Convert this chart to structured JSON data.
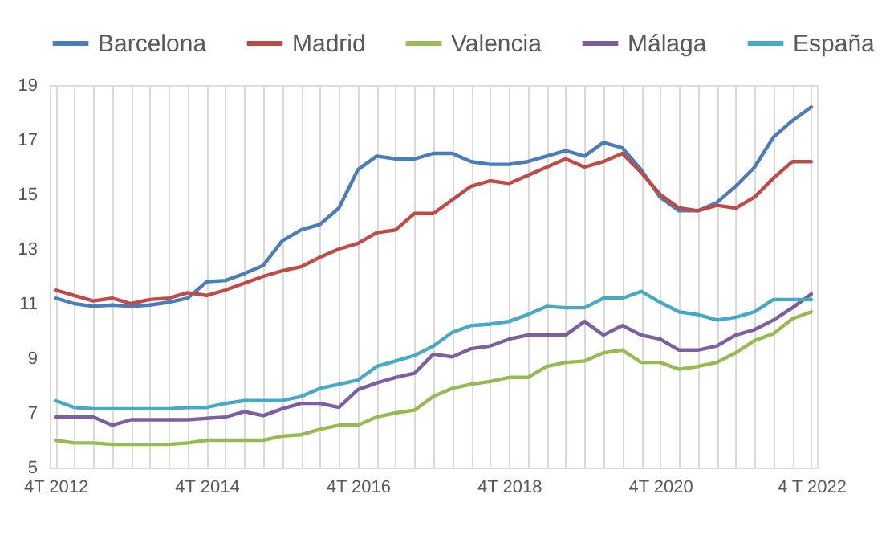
{
  "chart_data": {
    "type": "line",
    "categories": [
      "4T 2012",
      null,
      null,
      null,
      null,
      null,
      null,
      null,
      "4T 2014",
      null,
      null,
      null,
      null,
      null,
      null,
      null,
      "4T 2016",
      null,
      null,
      null,
      null,
      null,
      null,
      null,
      "4T 2018",
      null,
      null,
      null,
      null,
      null,
      null,
      null,
      "4T 2020",
      null,
      null,
      null,
      null,
      null,
      null,
      null,
      "4 T 2022"
    ],
    "series": [
      {
        "name": "Barcelona",
        "color": "#4a7ebb",
        "values": [
          11.2,
          11.0,
          10.9,
          10.95,
          10.9,
          10.95,
          11.05,
          11.2,
          11.8,
          11.85,
          12.1,
          12.4,
          13.3,
          13.7,
          13.9,
          14.5,
          15.9,
          16.4,
          16.3,
          16.3,
          16.5,
          16.5,
          16.2,
          16.1,
          16.1,
          16.2,
          16.4,
          16.6,
          16.4,
          16.9,
          16.7,
          15.9,
          14.9,
          14.4,
          14.4,
          14.7,
          15.3,
          16.0,
          17.1,
          17.7,
          18.2
        ]
      },
      {
        "name": "Madrid",
        "color": "#be4b48",
        "values": [
          11.5,
          11.3,
          11.1,
          11.2,
          11.0,
          11.15,
          11.2,
          11.4,
          11.3,
          11.5,
          11.75,
          12.0,
          12.2,
          12.35,
          12.7,
          13.0,
          13.2,
          13.6,
          13.7,
          14.3,
          14.3,
          14.8,
          15.3,
          15.5,
          15.4,
          15.7,
          16.0,
          16.3,
          16.0,
          16.2,
          16.5,
          15.8,
          15.0,
          14.5,
          14.4,
          14.6,
          14.5,
          14.9,
          15.6,
          16.2,
          16.2
        ]
      },
      {
        "name": "Valencia",
        "color": "#98b954",
        "values": [
          6.0,
          5.9,
          5.9,
          5.85,
          5.85,
          5.85,
          5.85,
          5.9,
          6.0,
          6.0,
          6.0,
          6.0,
          6.15,
          6.2,
          6.4,
          6.55,
          6.55,
          6.85,
          7.0,
          7.1,
          7.6,
          7.9,
          8.05,
          8.15,
          8.3,
          8.3,
          8.7,
          8.85,
          8.9,
          9.2,
          9.3,
          8.85,
          8.85,
          8.6,
          8.7,
          8.85,
          9.2,
          9.65,
          9.9,
          10.45,
          10.7
        ]
      },
      {
        "name": "Málaga",
        "color": "#7d5fa0",
        "values": [
          6.85,
          6.85,
          6.85,
          6.55,
          6.75,
          6.75,
          6.75,
          6.75,
          6.8,
          6.85,
          7.05,
          6.9,
          7.15,
          7.35,
          7.35,
          7.2,
          7.85,
          8.1,
          8.3,
          8.45,
          9.15,
          9.05,
          9.35,
          9.45,
          9.7,
          9.85,
          9.85,
          9.85,
          10.35,
          9.85,
          10.2,
          9.85,
          9.7,
          9.3,
          9.3,
          9.45,
          9.85,
          10.05,
          10.4,
          10.85,
          11.35
        ]
      },
      {
        "name": "España",
        "color": "#46aac5",
        "values": [
          7.45,
          7.2,
          7.15,
          7.15,
          7.15,
          7.15,
          7.15,
          7.2,
          7.2,
          7.35,
          7.45,
          7.45,
          7.45,
          7.6,
          7.9,
          8.05,
          8.2,
          8.7,
          8.9,
          9.1,
          9.45,
          9.95,
          10.2,
          10.25,
          10.35,
          10.6,
          10.9,
          10.85,
          10.85,
          11.2,
          11.2,
          11.45,
          11.05,
          10.7,
          10.6,
          10.4,
          10.5,
          10.7,
          11.15,
          11.15,
          11.15
        ]
      }
    ],
    "ylim": [
      5,
      19
    ],
    "yticks": [
      5,
      7,
      9,
      11,
      13,
      15,
      17,
      19
    ],
    "grid": "x",
    "legend": "top",
    "line_style": "solid"
  }
}
